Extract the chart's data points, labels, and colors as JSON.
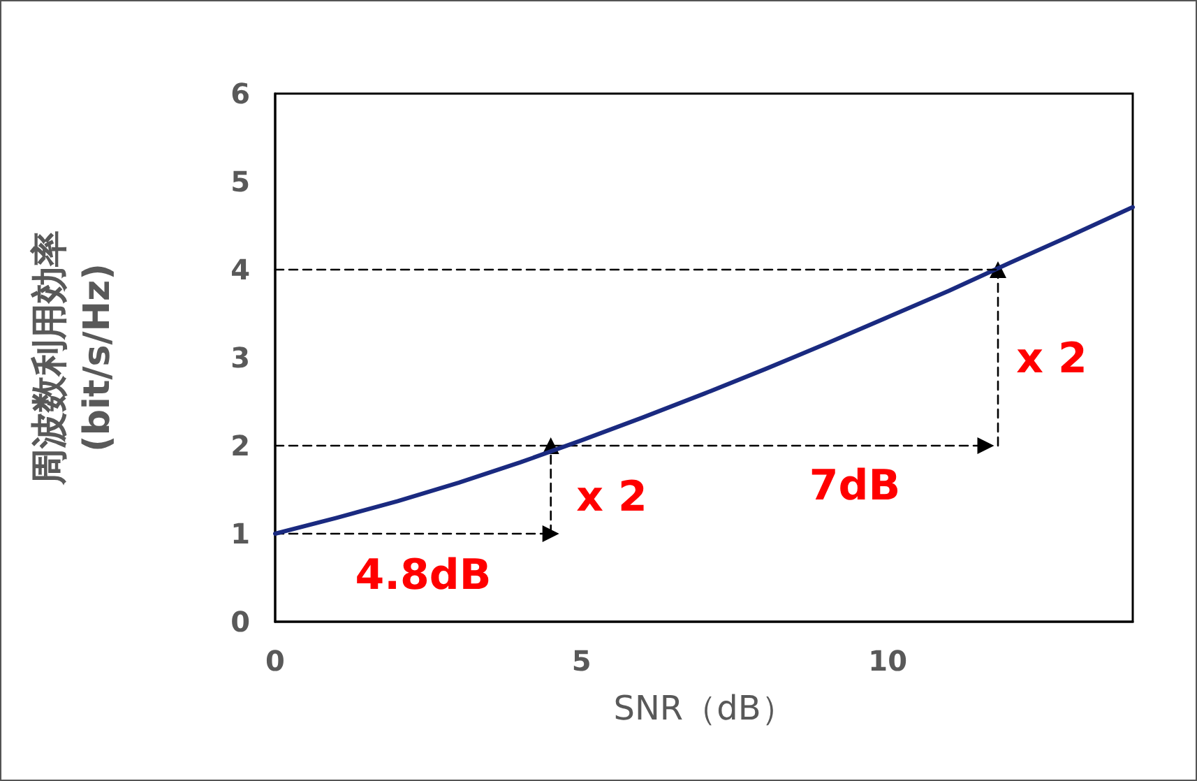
{
  "chart_data": {
    "type": "line",
    "xlabel": "SNR（dB）",
    "ylabel": "周波数利用効率\n(bit/s/Hz)",
    "xlim": [
      0,
      14
    ],
    "xticks": [
      0,
      5,
      10
    ],
    "ylim": [
      0,
      6
    ],
    "yticks": [
      0,
      1,
      2,
      3,
      4,
      5,
      6
    ],
    "grid": false,
    "series": [
      {
        "color": "#1a2a80",
        "marker": "none",
        "line_style": "solid",
        "x": [
          0,
          1,
          2,
          3,
          4,
          5,
          6,
          7,
          8,
          9,
          10,
          11,
          12,
          13,
          14
        ],
        "values": [
          1,
          1.18,
          1.37,
          1.58,
          1.81,
          2.06,
          2.32,
          2.59,
          2.87,
          3.16,
          3.46,
          3.76,
          4.08,
          4.39,
          4.71
        ]
      },
      {
        "color": "#000000",
        "marker": "triangle",
        "line_style": "dashed",
        "x": [
          0,
          4.5
        ],
        "values": [
          1,
          1
        ]
      },
      {
        "color": "#000000",
        "marker": "triangle",
        "line_style": "dashed",
        "x": [
          4.5,
          4.5
        ],
        "values": [
          1,
          2
        ]
      },
      {
        "color": "#000000",
        "marker": "triangle",
        "line_style": "dashed",
        "x": [
          0,
          11.6
        ],
        "values": [
          2,
          2
        ]
      },
      {
        "color": "#000000",
        "marker": "triangle",
        "line_style": "dashed",
        "x": [
          11.8,
          11.8
        ],
        "values": [
          2,
          4
        ]
      },
      {
        "color": "#000000",
        "marker": "none",
        "line_style": "dashed",
        "x": [
          0,
          11.8
        ],
        "values": [
          4,
          4
        ]
      }
    ],
    "annotations": [
      "x 2",
      "4.8dB",
      "7dB",
      "x 2"
    ]
  }
}
